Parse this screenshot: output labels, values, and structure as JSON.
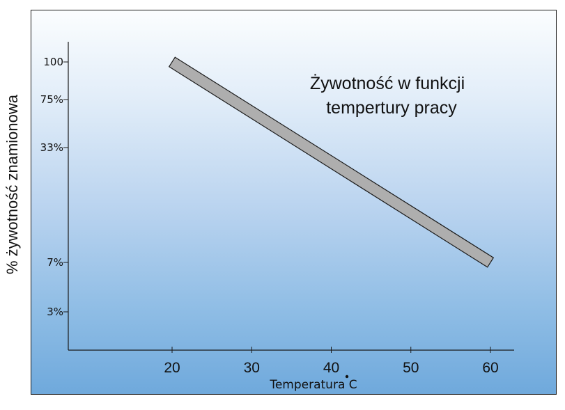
{
  "chart_data": {
    "type": "line",
    "title": [
      "Żywotność w   funkcji",
      "tempertury pracy"
    ],
    "xlabel": "Temperatura C",
    "ylabel": "% żywotność znamionowa",
    "x_ticks": [
      {
        "value": 20,
        "label": "20"
      },
      {
        "value": 30,
        "label": "30"
      },
      {
        "value": 40,
        "label": "40"
      },
      {
        "value": 50,
        "label": "50"
      },
      {
        "value": 60,
        "label": "60"
      }
    ],
    "y_ticks": [
      {
        "value": 100,
        "label": "100"
      },
      {
        "value": 75,
        "label": "75%"
      },
      {
        "value": 33,
        "label": "33%"
      },
      {
        "value": 7,
        "label": "7%"
      },
      {
        "value": 3,
        "label": "3%"
      }
    ],
    "series": [
      {
        "x": [
          20,
          60
        ],
        "y": [
          100,
          7
        ]
      }
    ],
    "colors": {
      "band_fill": "#aeaeae",
      "band_stroke": "#1a1a1a",
      "axis": "#1a1a1a"
    }
  }
}
